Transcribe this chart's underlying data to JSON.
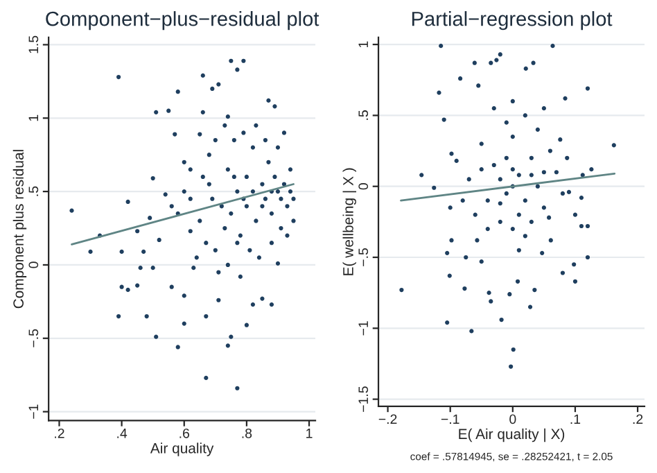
{
  "chart_data": [
    {
      "type": "scatter",
      "title": "Component−plus−residual plot",
      "xlabel": "Air quality",
      "ylabel": "Component plus residual",
      "xlim": [
        0.166,
        1.02
      ],
      "ylim": [
        -1.06,
        1.55
      ],
      "xticks": [
        {
          "value": 0.2,
          "label": ".2"
        },
        {
          "value": 0.4,
          "label": ".4"
        },
        {
          "value": 0.6,
          "label": ".6"
        },
        {
          "value": 0.8,
          "label": ".8"
        },
        1
      ],
      "yticks": [
        {
          "value": -1,
          "label": "−1"
        },
        {
          "value": -0.5,
          "label": "−.5"
        },
        0,
        {
          "value": 0.5,
          "label": ".5"
        },
        1,
        1.5
      ],
      "grid": "y",
      "series": [
        {
          "marker": "circle",
          "color": "#1f3f5f",
          "x": [
            0.24,
            0.3,
            0.33,
            0.39,
            0.4,
            0.39,
            0.4,
            0.42,
            0.42,
            0.45,
            0.45,
            0.46,
            0.47,
            0.48,
            0.49,
            0.5,
            0.5,
            0.51,
            0.51,
            0.52,
            0.54,
            0.55,
            0.56,
            0.57,
            0.58,
            0.58,
            0.6,
            0.6,
            0.6,
            0.62,
            0.63,
            0.65,
            0.66,
            0.66,
            0.67,
            0.67,
            0.69,
            0.71,
            0.71,
            0.74,
            0.74,
            0.75,
            0.75,
            0.77,
            0.77,
            0.79,
            0.78,
            0.8,
            0.82,
            0.85,
            0.87,
            0.88,
            0.89,
            0.9,
            0.62,
            0.65,
            0.68,
            0.7,
            0.72,
            0.74,
            0.75,
            0.77,
            0.78,
            0.8,
            0.8,
            0.82,
            0.83,
            0.85,
            0.86,
            0.87,
            0.88,
            0.89,
            0.9,
            0.91,
            0.92,
            0.93,
            0.94,
            0.95,
            0.95,
            0.68,
            0.7,
            0.73,
            0.76,
            0.79,
            0.83,
            0.86,
            0.9,
            0.92,
            0.64,
            0.67,
            0.71,
            0.74,
            0.77,
            0.81,
            0.84,
            0.88,
            0.93,
            0.6,
            0.58,
            0.56,
            0.62,
            0.66,
            0.69,
            0.73,
            0.76,
            0.79,
            0.82,
            0.85,
            0.88,
            0.91,
            0.94
          ],
          "values": [
            0.37,
            0.09,
            0.2,
            1.28,
            0.09,
            -0.35,
            -0.15,
            -0.17,
            0.43,
            -0.14,
            0.23,
            -0.02,
            0.09,
            -0.35,
            0.32,
            -0.02,
            0.59,
            1.04,
            -0.49,
            0.17,
            0.48,
            1.05,
            -0.15,
            0.89,
            -0.56,
            1.18,
            -0.21,
            -0.4,
            0.7,
            0.23,
            -0.02,
            0.89,
            1.29,
            1.04,
            -0.35,
            -0.77,
            1.2,
            1.23,
            -0.24,
            1.01,
            -0.55,
            1.39,
            -0.49,
            1.33,
            -0.84,
            1.39,
            -0.08,
            -0.41,
            -0.27,
            -0.23,
            1.12,
            -0.27,
            1.08,
            0.01,
            0.45,
            0.3,
            0.55,
            0.1,
            0.4,
            0.65,
            0.35,
            0.5,
            0.2,
            0.6,
            0.4,
            0.8,
            0.3,
            0.55,
            0.45,
            0.7,
            0.35,
            0.6,
            0.5,
            0.25,
            0.55,
            0.4,
            0.65,
            0.45,
            0.3,
            0.75,
            0.85,
            0.95,
            0.85,
            0.9,
            0.95,
            0.85,
            0.8,
            0.9,
            0.05,
            0.15,
            -0.05,
            0.0,
            0.15,
            0.1,
            0.05,
            0.15,
            0.2,
            0.5,
            0.35,
            0.4,
            0.65,
            0.6,
            0.45,
            0.25,
            0.6,
            0.45,
            0.5,
            0.4,
            0.5,
            0.45,
            0.5
          ]
        },
        {
          "type": "line",
          "color": "#5f8585",
          "x": [
            0.24,
            0.95
          ],
          "values": [
            0.14,
            0.55
          ]
        }
      ]
    },
    {
      "type": "scatter",
      "title": "Partial−regression plot",
      "xlabel": "E( Air quality | X)",
      "ylabel": "E( wellbeing | X )",
      "xlim": [
        -0.215,
        0.211
      ],
      "ylim": [
        -1.55,
        1.05
      ],
      "xticks": [
        {
          "value": -0.2,
          "label": "−.2"
        },
        {
          "value": -0.1,
          "label": "−.1"
        },
        0,
        {
          "value": 0.1,
          "label": ".1"
        },
        {
          "value": 0.2,
          "label": ".2"
        }
      ],
      "yticks": [
        {
          "value": -1.5,
          "label": "−1.5"
        },
        {
          "value": -1,
          "label": "−1"
        },
        {
          "value": -0.5,
          "label": "−.5"
        },
        0,
        {
          "value": 0.5,
          "label": ".5"
        },
        1
      ],
      "grid": "y",
      "annotations": [
        "coef = .57814945, se = .28252421, t = 2.05"
      ],
      "series": [
        {
          "marker": "circle",
          "color": "#1f3f5f",
          "x": [
            -0.115,
            0.064,
            -0.118,
            -0.061,
            -0.035,
            -0.026,
            -0.02,
            0.033,
            0.021,
            -0.084,
            -0.055,
            0.12,
            0.084,
            -0.146,
            -0.126,
            -0.178,
            0.162,
            0.126,
            0.112,
            -0.105,
            -0.066,
            -0.101,
            -0.077,
            -0.038,
            -0.035,
            -0.018,
            0.001,
            -0.003,
            0.028,
            0.008,
            -0.005,
            0.035,
            0.08,
            0.098,
            0.1,
            0.12,
            0.11,
            0.12,
            0.11,
            0.09,
            -0.11,
            -0.098,
            -0.098,
            -0.105,
            -0.075,
            -0.057,
            -0.05,
            0.061,
            0.047,
            0.058,
            0.076,
            0.087,
            -0.05,
            -0.03,
            -0.02,
            -0.01,
            0,
            0.01,
            0.02,
            0.03,
            0.04,
            0.05,
            -0.04,
            -0.06,
            0,
            -0.01,
            0.02,
            0.04,
            0.06,
            -0.07,
            -0.08,
            0.07,
            0,
            -0.02,
            0.02,
            0.01,
            -0.04,
            0.03,
            -0.03,
            0.05,
            0,
            -0.01,
            0.01,
            0,
            -0.02,
            0.03,
            -0.05,
            0.05,
            -0.09,
            0.08,
            -0.1,
            0.1
          ],
          "values": [
            0.99,
            0.99,
            0.66,
            0.87,
            0.87,
            0.89,
            0.93,
            0.87,
            0.83,
            0.76,
            0.71,
            0.69,
            0.62,
            0.08,
            -0.01,
            -0.73,
            0.29,
            0.12,
            0.08,
            -0.96,
            -1.02,
            -0.63,
            -0.72,
            -0.75,
            -0.81,
            -0.94,
            -1.15,
            -1.27,
            -0.85,
            -0.67,
            -0.76,
            -0.73,
            -0.61,
            -0.55,
            -0.67,
            -0.5,
            -0.28,
            -0.28,
            -0.08,
            -0.04,
            0.47,
            0.23,
            -0.38,
            -0.47,
            -0.5,
            -0.38,
            -0.53,
            -0.38,
            -0.47,
            -0.22,
            0.33,
            0.2,
            0.3,
            0.15,
            0.05,
            -0.05,
            0,
            0.08,
            -0.1,
            0.2,
            0,
            -0.15,
            -0.1,
            -0.2,
            0.35,
            0.45,
            0.5,
            0.4,
            0.25,
            0.05,
            -0.1,
            0.1,
            -0.3,
            -0.25,
            -0.35,
            -0.45,
            -0.3,
            -0.25,
            0.55,
            0.55,
            0.6,
            0.2,
            -0.2,
            0.12,
            -0.12,
            0.08,
            0.12,
            0.1,
            0.18,
            -0.05,
            -0.15,
            -0.2
          ]
        },
        {
          "type": "line",
          "color": "#5f8585",
          "x": [
            -0.179,
            0.163
          ],
          "values": [
            -0.1,
            0.09
          ]
        }
      ]
    }
  ]
}
